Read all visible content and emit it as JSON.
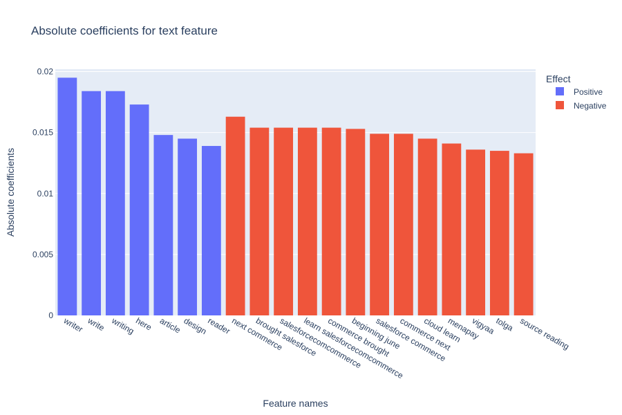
{
  "chart_data": {
    "type": "bar",
    "title": "Absolute coefficients for text feature",
    "xlabel": "Feature names",
    "ylabel": "Absolute coefficients",
    "ylim": [
      0,
      0.0202
    ],
    "yticks": [
      {
        "value": 0,
        "label": "0"
      },
      {
        "value": 0.005,
        "label": "0.005"
      },
      {
        "value": 0.01,
        "label": "0.01"
      },
      {
        "value": 0.015,
        "label": "0.015"
      },
      {
        "value": 0.02,
        "label": "0.02"
      }
    ],
    "grid": true,
    "legend": {
      "title": "Effect",
      "placement": "top-right"
    },
    "categories": [
      "writer",
      "write",
      "writing",
      "here",
      "article",
      "design",
      "reader",
      "next commerce",
      "brought salesforce",
      "salesforcecomcommerce",
      "learn salesforcecomcommerce",
      "commerce brought",
      "beginning june",
      "salesforce commerce",
      "commerce next",
      "cloud learn",
      "menapay",
      "vigyaa",
      "tolga",
      "source reading"
    ],
    "series": [
      {
        "name": "Positive",
        "color": "#636efa",
        "values": [
          0.0195,
          0.0184,
          0.0184,
          0.0173,
          0.0148,
          0.0145,
          0.0139,
          null,
          null,
          null,
          null,
          null,
          null,
          null,
          null,
          null,
          null,
          null,
          null,
          null
        ]
      },
      {
        "name": "Negative",
        "color": "#ef553b",
        "values": [
          null,
          null,
          null,
          null,
          null,
          null,
          null,
          0.0163,
          0.0154,
          0.0154,
          0.0154,
          0.0154,
          0.0153,
          0.0149,
          0.0149,
          0.0145,
          0.0141,
          0.0136,
          0.0135,
          0.0133
        ]
      }
    ]
  },
  "colors": {
    "plot_background": "#e5ecf6",
    "gridline": "#ffffff",
    "text": "#2a3f5f"
  }
}
